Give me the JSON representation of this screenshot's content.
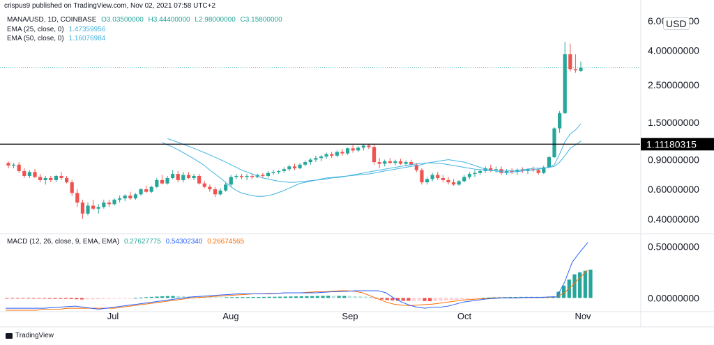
{
  "caption": "crispus9 published on TradingView.com, Nov 02, 2021 07:58 UTC+2",
  "brand": "TradingView",
  "currency_badge": "USD",
  "legend": {
    "symbol_line": {
      "text": "MANA/USD, 1D, COINBASE",
      "o": "O3.03500000",
      "h": "H3.44400000",
      "l": "L2.98000000",
      "c": "C3.15800000"
    },
    "ema25": {
      "text": "EMA (25, close, 0)",
      "value": "1.47359956"
    },
    "ema50": {
      "text": "EMA (50, close, 0)",
      "value": "1.16076984"
    },
    "macd": {
      "text": "MACD (12, 26, close, 9, EMA, EMA)",
      "hist": "0.27627775",
      "macd": "0.54302340",
      "signal": "0.26674565"
    }
  },
  "colors": {
    "up": "#26a69a",
    "down": "#ef5350",
    "ema": "#42b3e0",
    "macd": "#2962ff",
    "signal": "#ff6d00",
    "line": "#000000"
  },
  "chart_data": [
    {
      "type": "candlestick",
      "scale": "log",
      "x_ticks": [
        "Jul",
        "Aug",
        "Sep",
        "Oct",
        "Nov"
      ],
      "y_ticks": [
        "6.00000000",
        "4.00000000",
        "2.50000000",
        "1.50000000",
        "0.90000000",
        "0.60000000",
        "0.40000000"
      ],
      "horizontal_line": {
        "value": 1.11180315,
        "label": "1.11180315"
      },
      "last_price": 3.158,
      "candles": [
        [
          0.86,
          0.88,
          0.8,
          0.83
        ],
        [
          0.83,
          0.86,
          0.8,
          0.84
        ],
        [
          0.84,
          0.87,
          0.75,
          0.77
        ],
        [
          0.77,
          0.8,
          0.7,
          0.72
        ],
        [
          0.72,
          0.78,
          0.7,
          0.76
        ],
        [
          0.76,
          0.79,
          0.7,
          0.71
        ],
        [
          0.71,
          0.74,
          0.66,
          0.68
        ],
        [
          0.68,
          0.72,
          0.64,
          0.7
        ],
        [
          0.7,
          0.72,
          0.66,
          0.68
        ],
        [
          0.68,
          0.73,
          0.66,
          0.72
        ],
        [
          0.72,
          0.76,
          0.68,
          0.7
        ],
        [
          0.7,
          0.72,
          0.65,
          0.66
        ],
        [
          0.66,
          0.68,
          0.55,
          0.57
        ],
        [
          0.57,
          0.6,
          0.47,
          0.5
        ],
        [
          0.5,
          0.52,
          0.4,
          0.43
        ],
        [
          0.43,
          0.5,
          0.42,
          0.48
        ],
        [
          0.48,
          0.52,
          0.45,
          0.46
        ],
        [
          0.46,
          0.49,
          0.43,
          0.47
        ],
        [
          0.47,
          0.52,
          0.46,
          0.5
        ],
        [
          0.5,
          0.52,
          0.47,
          0.49
        ],
        [
          0.49,
          0.53,
          0.48,
          0.52
        ],
        [
          0.52,
          0.55,
          0.5,
          0.53
        ],
        [
          0.53,
          0.56,
          0.51,
          0.55
        ],
        [
          0.55,
          0.58,
          0.52,
          0.53
        ],
        [
          0.53,
          0.57,
          0.52,
          0.56
        ],
        [
          0.56,
          0.61,
          0.55,
          0.6
        ],
        [
          0.6,
          0.63,
          0.57,
          0.58
        ],
        [
          0.58,
          0.63,
          0.57,
          0.62
        ],
        [
          0.62,
          0.7,
          0.61,
          0.68
        ],
        [
          0.68,
          0.73,
          0.64,
          0.65
        ],
        [
          0.65,
          0.72,
          0.64,
          0.7
        ],
        [
          0.7,
          0.78,
          0.69,
          0.74
        ],
        [
          0.74,
          0.77,
          0.66,
          0.68
        ],
        [
          0.68,
          0.76,
          0.66,
          0.73
        ],
        [
          0.73,
          0.76,
          0.69,
          0.7
        ],
        [
          0.7,
          0.74,
          0.68,
          0.72
        ],
        [
          0.72,
          0.74,
          0.64,
          0.65
        ],
        [
          0.65,
          0.67,
          0.61,
          0.62
        ],
        [
          0.62,
          0.64,
          0.58,
          0.6
        ],
        [
          0.6,
          0.62,
          0.54,
          0.56
        ],
        [
          0.56,
          0.61,
          0.55,
          0.59
        ],
        [
          0.59,
          0.66,
          0.58,
          0.64
        ],
        [
          0.64,
          0.73,
          0.62,
          0.71
        ],
        [
          0.71,
          0.74,
          0.69,
          0.72
        ],
        [
          0.72,
          0.74,
          0.69,
          0.71
        ],
        [
          0.71,
          0.74,
          0.68,
          0.72
        ],
        [
          0.72,
          0.74,
          0.69,
          0.71
        ],
        [
          0.71,
          0.74,
          0.7,
          0.73
        ],
        [
          0.73,
          0.75,
          0.7,
          0.72
        ],
        [
          0.72,
          0.77,
          0.7,
          0.75
        ],
        [
          0.75,
          0.78,
          0.73,
          0.76
        ],
        [
          0.76,
          0.78,
          0.74,
          0.77
        ],
        [
          0.77,
          0.81,
          0.75,
          0.79
        ],
        [
          0.79,
          0.84,
          0.77,
          0.82
        ],
        [
          0.82,
          0.85,
          0.78,
          0.8
        ],
        [
          0.8,
          0.86,
          0.79,
          0.84
        ],
        [
          0.84,
          0.89,
          0.82,
          0.87
        ],
        [
          0.87,
          0.92,
          0.84,
          0.9
        ],
        [
          0.9,
          0.95,
          0.87,
          0.92
        ],
        [
          0.92,
          0.96,
          0.88,
          0.94
        ],
        [
          0.94,
          0.99,
          0.91,
          0.97
        ],
        [
          0.97,
          1.0,
          0.92,
          0.95
        ],
        [
          0.95,
          1.02,
          0.93,
          1.0
        ],
        [
          1.0,
          1.04,
          0.95,
          0.98
        ],
        [
          0.98,
          1.06,
          0.96,
          1.05
        ],
        [
          1.05,
          1.1,
          0.99,
          1.02
        ],
        [
          1.02,
          1.08,
          1.0,
          1.06
        ],
        [
          1.06,
          1.11,
          1.02,
          1.09
        ],
        [
          1.09,
          1.12,
          1.04,
          1.07
        ],
        [
          1.07,
          1.12,
          0.84,
          0.87
        ],
        [
          0.87,
          0.92,
          0.8,
          0.85
        ],
        [
          0.85,
          0.9,
          0.82,
          0.88
        ],
        [
          0.88,
          0.92,
          0.85,
          0.86
        ],
        [
          0.86,
          0.9,
          0.83,
          0.88
        ],
        [
          0.88,
          0.91,
          0.84,
          0.85
        ],
        [
          0.85,
          0.89,
          0.82,
          0.87
        ],
        [
          0.87,
          0.9,
          0.83,
          0.84
        ],
        [
          0.84,
          0.86,
          0.76,
          0.78
        ],
        [
          0.78,
          0.8,
          0.64,
          0.66
        ],
        [
          0.66,
          0.71,
          0.64,
          0.69
        ],
        [
          0.69,
          0.75,
          0.67,
          0.73
        ],
        [
          0.73,
          0.76,
          0.68,
          0.7
        ],
        [
          0.7,
          0.73,
          0.66,
          0.68
        ],
        [
          0.68,
          0.71,
          0.64,
          0.66
        ],
        [
          0.66,
          0.69,
          0.63,
          0.64
        ],
        [
          0.64,
          0.68,
          0.63,
          0.67
        ],
        [
          0.67,
          0.73,
          0.66,
          0.71
        ],
        [
          0.71,
          0.76,
          0.69,
          0.74
        ],
        [
          0.74,
          0.78,
          0.71,
          0.75
        ],
        [
          0.75,
          0.79,
          0.73,
          0.77
        ],
        [
          0.77,
          0.82,
          0.75,
          0.8
        ],
        [
          0.8,
          0.84,
          0.76,
          0.78
        ],
        [
          0.78,
          0.82,
          0.75,
          0.79
        ],
        [
          0.79,
          0.82,
          0.73,
          0.75
        ],
        [
          0.75,
          0.79,
          0.73,
          0.77
        ],
        [
          0.77,
          0.8,
          0.74,
          0.76
        ],
        [
          0.76,
          0.8,
          0.73,
          0.78
        ],
        [
          0.78,
          0.81,
          0.75,
          0.77
        ],
        [
          0.77,
          0.8,
          0.74,
          0.79
        ],
        [
          0.79,
          0.82,
          0.76,
          0.78
        ],
        [
          0.78,
          0.8,
          0.73,
          0.75
        ],
        [
          0.75,
          0.83,
          0.74,
          0.81
        ],
        [
          0.81,
          0.95,
          0.8,
          0.93
        ],
        [
          0.93,
          1.4,
          0.92,
          1.38
        ],
        [
          1.38,
          1.75,
          1.3,
          1.7
        ],
        [
          1.7,
          4.5,
          1.68,
          3.8
        ],
        [
          3.8,
          4.4,
          3.0,
          3.1
        ],
        [
          3.1,
          3.8,
          2.95,
          3.05
        ],
        [
          3.03,
          3.44,
          2.98,
          3.16
        ]
      ],
      "ema25": [
        1.14,
        1.1,
        1.07,
        1.03,
        0.99,
        0.95,
        0.91,
        0.87,
        0.83,
        0.78,
        0.74,
        0.7,
        0.66,
        0.62,
        0.59,
        0.57,
        0.56,
        0.55,
        0.545,
        0.545,
        0.55,
        0.56,
        0.575,
        0.59,
        0.61,
        0.63,
        0.65,
        0.66,
        0.67,
        0.68,
        0.69,
        0.7,
        0.705,
        0.71,
        0.715,
        0.72,
        0.725,
        0.73,
        0.735,
        0.74,
        0.75,
        0.76,
        0.77,
        0.78,
        0.79,
        0.8,
        0.81,
        0.82,
        0.83,
        0.84,
        0.86,
        0.87,
        0.88,
        0.89,
        0.9,
        0.89,
        0.88,
        0.87,
        0.85,
        0.83,
        0.81,
        0.79,
        0.78,
        0.77,
        0.76,
        0.755,
        0.76,
        0.765,
        0.77,
        0.78,
        0.78,
        0.79,
        0.8,
        0.81,
        0.84,
        0.97,
        1.15,
        1.28,
        1.35,
        1.47
      ],
      "ema50": [
        1.2,
        1.17,
        1.14,
        1.11,
        1.08,
        1.05,
        1.02,
        0.99,
        0.96,
        0.93,
        0.9,
        0.87,
        0.84,
        0.81,
        0.78,
        0.76,
        0.74,
        0.72,
        0.7,
        0.69,
        0.68,
        0.67,
        0.665,
        0.66,
        0.66,
        0.665,
        0.67,
        0.675,
        0.68,
        0.685,
        0.69,
        0.7,
        0.705,
        0.71,
        0.72,
        0.73,
        0.74,
        0.75,
        0.76,
        0.77,
        0.78,
        0.79,
        0.8,
        0.81,
        0.82,
        0.83,
        0.84,
        0.85,
        0.855,
        0.86,
        0.86,
        0.855,
        0.85,
        0.84,
        0.83,
        0.82,
        0.81,
        0.8,
        0.79,
        0.785,
        0.78,
        0.775,
        0.77,
        0.77,
        0.77,
        0.775,
        0.78,
        0.785,
        0.79,
        0.8,
        0.8,
        0.8,
        0.81,
        0.82,
        0.87,
        0.95,
        1.05,
        1.1,
        1.16
      ]
    },
    {
      "type": "bar",
      "name": "MACD",
      "y_ticks": [
        "0.50000000",
        "0.00000000"
      ],
      "hist": [
        -0.002,
        -0.002,
        -0.003,
        -0.004,
        -0.004,
        -0.005,
        -0.006,
        -0.007,
        -0.008,
        -0.009,
        -0.009,
        -0.009,
        -0.011,
        -0.013,
        -0.015,
        -0.014,
        -0.013,
        -0.012,
        -0.011,
        -0.009,
        -0.007,
        -0.005,
        -0.003,
        -0.002,
        0.001,
        0.004,
        0.007,
        0.01,
        0.013,
        0.016,
        0.018,
        0.019,
        0.018,
        0.017,
        0.016,
        0.015,
        0.013,
        0.011,
        0.009,
        0.007,
        0.006,
        0.006,
        0.007,
        0.008,
        0.008,
        0.008,
        0.009,
        0.009,
        0.01,
        0.011,
        0.011,
        0.012,
        0.013,
        0.014,
        0.015,
        0.016,
        0.017,
        0.018,
        0.019,
        0.02,
        0.021,
        0.02,
        0.02,
        0.02,
        0.019,
        0.017,
        0.015,
        0.013,
        0.011,
        -0.008,
        -0.015,
        -0.02,
        -0.024,
        -0.027,
        -0.028,
        -0.028,
        -0.027,
        -0.026,
        -0.03,
        -0.032,
        -0.03,
        -0.027,
        -0.024,
        -0.021,
        -0.018,
        -0.015,
        -0.011,
        -0.007,
        -0.003,
        0.001,
        0.004,
        0.006,
        0.007,
        0.008,
        0.009,
        0.009,
        0.01,
        0.01,
        0.01,
        0.01,
        0.01,
        0.011,
        0.015,
        0.06,
        0.12,
        0.18,
        0.23,
        0.25,
        0.265,
        0.276
      ],
      "macd": [
        -0.1,
        -0.1,
        -0.1,
        -0.1,
        -0.1,
        -0.1,
        -0.095,
        -0.09,
        -0.085,
        -0.08,
        -0.09,
        -0.1,
        -0.11,
        -0.1,
        -0.09,
        -0.08,
        -0.07,
        -0.06,
        -0.05,
        -0.04,
        -0.03,
        -0.02,
        -0.01,
        0.0,
        0.01,
        0.015,
        0.02,
        0.025,
        0.03,
        0.035,
        0.04,
        0.04,
        0.04,
        0.04,
        0.04,
        0.045,
        0.05,
        0.05,
        0.05,
        0.05,
        0.05,
        0.055,
        0.06,
        0.06,
        0.065,
        0.07,
        0.07,
        0.07,
        0.07,
        0.05,
        0.0,
        -0.04,
        -0.07,
        -0.09,
        -0.1,
        -0.09,
        -0.09,
        -0.08,
        -0.06,
        -0.04,
        -0.03,
        -0.02,
        -0.01,
        -0.005,
        0.0,
        0.0,
        0.0,
        0.005,
        0.005,
        0.005,
        0.01,
        0.01,
        0.15,
        0.35,
        0.45,
        0.54
      ],
      "signal": [
        -0.12,
        -0.12,
        -0.12,
        -0.12,
        -0.12,
        -0.11,
        -0.11,
        -0.11,
        -0.1,
        -0.1,
        -0.1,
        -0.1,
        -0.1,
        -0.1,
        -0.1,
        -0.09,
        -0.08,
        -0.07,
        -0.06,
        -0.05,
        -0.04,
        -0.03,
        -0.02,
        -0.01,
        0.0,
        0.005,
        0.01,
        0.015,
        0.02,
        0.025,
        0.03,
        0.035,
        0.04,
        0.04,
        0.045,
        0.045,
        0.05,
        0.05,
        0.05,
        0.055,
        0.06,
        0.06,
        0.065,
        0.07,
        0.07,
        0.065,
        0.05,
        0.02,
        -0.01,
        -0.04,
        -0.06,
        -0.07,
        -0.075,
        -0.07,
        -0.065,
        -0.06,
        -0.05,
        -0.04,
        -0.03,
        -0.02,
        -0.015,
        -0.01,
        -0.005,
        0.0,
        0.0,
        0.0,
        0.0,
        0.003,
        0.004,
        0.005,
        0.006,
        0.01,
        0.05,
        0.12,
        0.2,
        0.27
      ]
    }
  ]
}
